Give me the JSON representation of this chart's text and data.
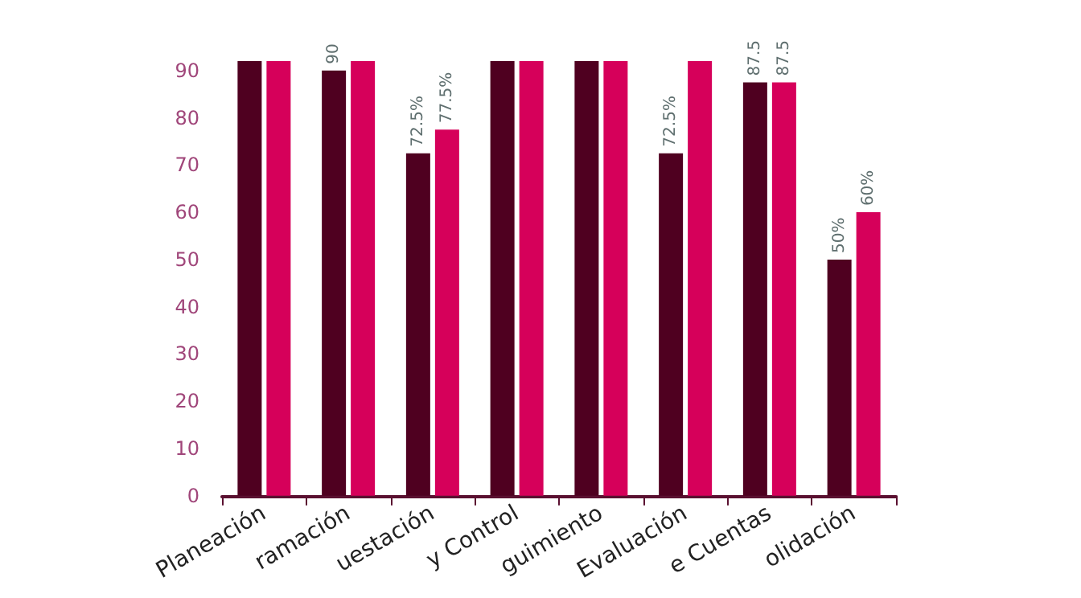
{
  "chart_data": {
    "type": "bar",
    "categories": [
      "Planeación",
      "ramación",
      "uestación",
      "y Control",
      "guimiento",
      "Evaluación",
      "e Cuentas",
      "olidación"
    ],
    "series": [
      {
        "color": "#4f0020",
        "values": [
          92,
          90,
          72.5,
          92,
          92,
          72.5,
          87.5,
          50
        ],
        "value_labels": [
          null,
          "90",
          "72.5%",
          null,
          null,
          "72.5%",
          "87.5",
          "50%"
        ]
      },
      {
        "color": "#d6005a",
        "values": [
          92,
          92,
          77.5,
          92,
          92,
          92,
          87.5,
          60
        ],
        "value_labels": [
          null,
          null,
          "77.5%",
          null,
          null,
          null,
          "87.5",
          "60%"
        ]
      }
    ],
    "ylim": [
      0,
      92
    ],
    "yticks": [
      0,
      10,
      20,
      30,
      40,
      50,
      60,
      70,
      80,
      90
    ],
    "grid": false
  }
}
